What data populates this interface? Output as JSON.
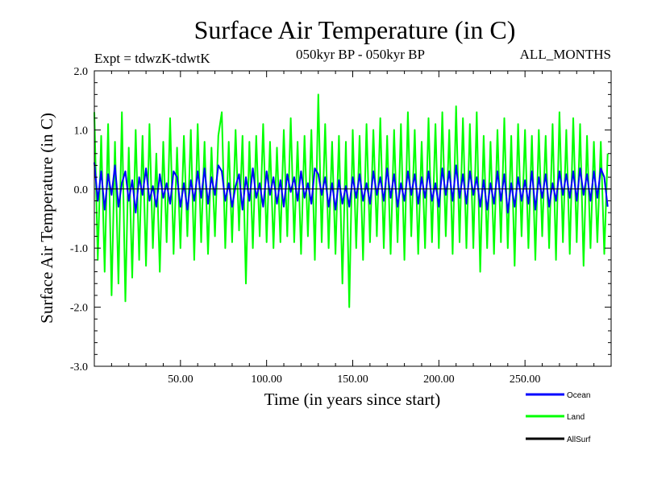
{
  "colors": {
    "ocean": "#0000ff",
    "land": "#00ff00",
    "allsurf": "#000000"
  },
  "chart_data": {
    "type": "line",
    "title": "Surface Air Temperature (in C)",
    "subtitle_left": "Expt = tdwzK-tdwtK",
    "subtitle_center": "050kyr BP - 050kyr BP",
    "subtitle_right": "ALL_MONTHS",
    "xlabel": "Time (in years since start)",
    "ylabel": "Surface Air Temperature (in C)",
    "xlim": [
      0,
      300
    ],
    "ylim": [
      -3.0,
      2.0
    ],
    "xticks": [
      50,
      100,
      150,
      200,
      250
    ],
    "xtick_labels": [
      "50.00",
      "100.00",
      "150.00",
      "200.00",
      "250.00"
    ],
    "yticks": [
      2.0,
      1.0,
      0.0,
      -1.0,
      -2.0,
      -3.0
    ],
    "ytick_labels": [
      "2.0",
      "1.0",
      "0.0",
      "-1.0",
      "-2.0",
      "-3.0"
    ],
    "legend_position": "bottom-right",
    "series": [
      {
        "name": "Ocean",
        "color": "#0000ff",
        "x": [
          0,
          2,
          4,
          6,
          8,
          10,
          12,
          14,
          16,
          18,
          20,
          22,
          24,
          26,
          28,
          30,
          32,
          34,
          36,
          38,
          40,
          42,
          44,
          46,
          48,
          50,
          52,
          54,
          56,
          58,
          60,
          62,
          64,
          66,
          68,
          70,
          72,
          74,
          76,
          78,
          80,
          82,
          84,
          86,
          88,
          90,
          92,
          94,
          96,
          98,
          100,
          102,
          104,
          106,
          108,
          110,
          112,
          114,
          116,
          118,
          120,
          122,
          124,
          126,
          128,
          130,
          132,
          134,
          136,
          138,
          140,
          142,
          144,
          146,
          148,
          150,
          152,
          154,
          156,
          158,
          160,
          162,
          164,
          166,
          168,
          170,
          172,
          174,
          176,
          178,
          180,
          182,
          184,
          186,
          188,
          190,
          192,
          194,
          196,
          198,
          200,
          202,
          204,
          206,
          208,
          210,
          212,
          214,
          216,
          218,
          220,
          222,
          224,
          226,
          228,
          230,
          232,
          234,
          236,
          238,
          240,
          242,
          244,
          246,
          248,
          250,
          252,
          254,
          256,
          258,
          260,
          262,
          264,
          266,
          268,
          270,
          272,
          274,
          276,
          278,
          280,
          282,
          284,
          286,
          288,
          290,
          292,
          294,
          296,
          298
        ],
        "values": [
          0.45,
          -0.2,
          0.3,
          -0.35,
          0.25,
          -0.1,
          0.4,
          -0.3,
          0.1,
          0.3,
          -0.2,
          0.15,
          -0.4,
          0.2,
          -0.1,
          0.35,
          -0.2,
          0.05,
          -0.3,
          0.25,
          -0.15,
          0.1,
          -0.25,
          0.3,
          0.2,
          -0.3,
          0.1,
          -0.35,
          0.15,
          -0.2,
          0.3,
          -0.15,
          0.35,
          -0.25,
          0.2,
          -0.1,
          0.4,
          0.3,
          -0.2,
          0.1,
          -0.3,
          0.05,
          0.25,
          -0.35,
          0.2,
          -0.2,
          0.35,
          -0.15,
          0.1,
          -0.3,
          0.3,
          -0.1,
          0.2,
          -0.25,
          0.15,
          -0.3,
          0.25,
          -0.05,
          0.2,
          -0.2,
          0.3,
          -0.15,
          0.1,
          -0.25,
          0.35,
          0.25,
          -0.1,
          0.2,
          -0.3,
          0.1,
          -0.35,
          0.15,
          -0.25,
          0.05,
          -0.3,
          0.2,
          -0.15,
          0.25,
          -0.2,
          0.1,
          -0.25,
          0.3,
          -0.1,
          0.2,
          -0.2,
          0.35,
          -0.15,
          0.25,
          -0.3,
          0.1,
          -0.2,
          0.3,
          -0.1,
          0.25,
          -0.25,
          0.2,
          -0.15,
          0.3,
          -0.2,
          0.1,
          -0.3,
          0.35,
          -0.1,
          0.3,
          -0.2,
          0.4,
          -0.15,
          0.25,
          -0.25,
          0.3,
          -0.1,
          0.2,
          -0.3,
          0.15,
          -0.35,
          0.1,
          -0.25,
          0.3,
          -0.2,
          0.25,
          -0.4,
          0.1,
          -0.3,
          0.2,
          -0.2,
          0.15,
          -0.25,
          0.3,
          -0.35,
          0.2,
          -0.15,
          0.25,
          -0.3,
          0.1,
          -0.2,
          0.3,
          -0.1,
          0.25,
          -0.15,
          0.3,
          -0.2,
          0.35,
          -0.1,
          0.25,
          -0.2,
          0.3,
          -0.15,
          0.35,
          0.2,
          -0.3
        ]
      },
      {
        "name": "Land",
        "color": "#00ff00",
        "x": [
          0,
          2,
          4,
          6,
          8,
          10,
          12,
          14,
          16,
          18,
          20,
          22,
          24,
          26,
          28,
          30,
          32,
          34,
          36,
          38,
          40,
          42,
          44,
          46,
          48,
          50,
          52,
          54,
          56,
          58,
          60,
          62,
          64,
          66,
          68,
          70,
          72,
          74,
          76,
          78,
          80,
          82,
          84,
          86,
          88,
          90,
          92,
          94,
          96,
          98,
          100,
          102,
          104,
          106,
          108,
          110,
          112,
          114,
          116,
          118,
          120,
          122,
          124,
          126,
          128,
          130,
          132,
          134,
          136,
          138,
          140,
          142,
          144,
          146,
          148,
          150,
          152,
          154,
          156,
          158,
          160,
          162,
          164,
          166,
          168,
          170,
          172,
          174,
          176,
          178,
          180,
          182,
          184,
          186,
          188,
          190,
          192,
          194,
          196,
          198,
          200,
          202,
          204,
          206,
          208,
          210,
          212,
          214,
          216,
          218,
          220,
          222,
          224,
          226,
          228,
          230,
          232,
          234,
          236,
          238,
          240,
          242,
          244,
          246,
          248,
          250,
          252,
          254,
          256,
          258,
          260,
          262,
          264,
          266,
          268,
          270,
          272,
          274,
          276,
          278,
          280,
          282,
          284,
          286,
          288,
          290,
          292,
          294,
          296,
          298
        ],
        "values": [
          1.3,
          -1.2,
          0.9,
          -1.4,
          1.1,
          -1.8,
          0.8,
          -1.6,
          1.3,
          -1.9,
          0.7,
          -1.5,
          1.0,
          -1.2,
          0.9,
          -1.3,
          1.1,
          -1.0,
          0.6,
          -1.4,
          0.8,
          -0.9,
          1.2,
          -1.1,
          0.7,
          -1.0,
          0.9,
          -0.8,
          1.0,
          -1.2,
          1.1,
          -0.9,
          0.8,
          -1.1,
          0.7,
          -0.8,
          0.9,
          1.3,
          -1.0,
          0.8,
          -0.9,
          1.0,
          -0.7,
          0.9,
          -1.6,
          0.8,
          -1.0,
          0.9,
          -0.8,
          1.1,
          -0.9,
          0.8,
          -1.0,
          0.7,
          -0.9,
          1.0,
          -0.8,
          1.2,
          -0.9,
          0.8,
          -1.1,
          0.9,
          -0.8,
          1.0,
          -1.2,
          1.6,
          -0.9,
          1.1,
          -1.0,
          0.8,
          -1.1,
          0.9,
          -1.6,
          0.8,
          -2.0,
          1.0,
          -1.0,
          0.9,
          -1.2,
          1.1,
          -0.9,
          1.0,
          -0.8,
          1.2,
          -1.0,
          0.9,
          -1.1,
          1.0,
          -0.9,
          1.1,
          -1.2,
          1.3,
          -0.8,
          1.0,
          -1.1,
          0.8,
          -1.0,
          1.2,
          -0.9,
          1.1,
          -1.0,
          1.3,
          -0.8,
          1.0,
          -1.1,
          1.4,
          -0.9,
          1.2,
          -1.0,
          1.1,
          -1.0,
          1.3,
          -1.4,
          0.9,
          -1.0,
          0.8,
          -1.1,
          1.0,
          -0.9,
          1.2,
          -1.0,
          0.9,
          -1.3,
          1.1,
          -0.8,
          1.0,
          -1.0,
          0.9,
          -1.2,
          1.0,
          -0.8,
          0.9,
          -1.0,
          1.1,
          -1.2,
          1.3,
          -0.9,
          1.0,
          -1.1,
          1.2,
          -0.9,
          1.1,
          -1.3,
          0.9,
          -1.0,
          0.8,
          -0.9,
          0.8,
          -1.1,
          0.6
        ]
      },
      {
        "name": "AllSurf",
        "color": "#000000",
        "x": [
          0,
          300
        ],
        "values": [
          0.0,
          0.0
        ]
      }
    ]
  }
}
